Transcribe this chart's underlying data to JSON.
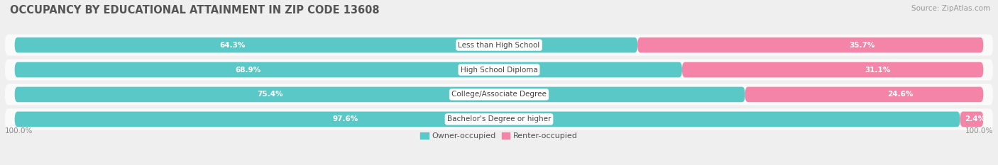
{
  "title": "OCCUPANCY BY EDUCATIONAL ATTAINMENT IN ZIP CODE 13608",
  "source": "Source: ZipAtlas.com",
  "categories": [
    "Less than High School",
    "High School Diploma",
    "College/Associate Degree",
    "Bachelor's Degree or higher"
  ],
  "owner_values": [
    64.3,
    68.9,
    75.4,
    97.6
  ],
  "renter_values": [
    35.7,
    31.1,
    24.6,
    2.4
  ],
  "owner_color": "#5BC8C8",
  "renter_color": "#F485A8",
  "bg_color": "#EFEFEF",
  "row_bg_color": "#FAFAFA",
  "title_fontsize": 10.5,
  "source_fontsize": 7.5,
  "label_fontsize": 7.5,
  "pct_fontsize": 7.5,
  "legend_fontsize": 8,
  "axis_label_fontsize": 7.5,
  "left_axis_label": "100.0%",
  "right_axis_label": "100.0%"
}
